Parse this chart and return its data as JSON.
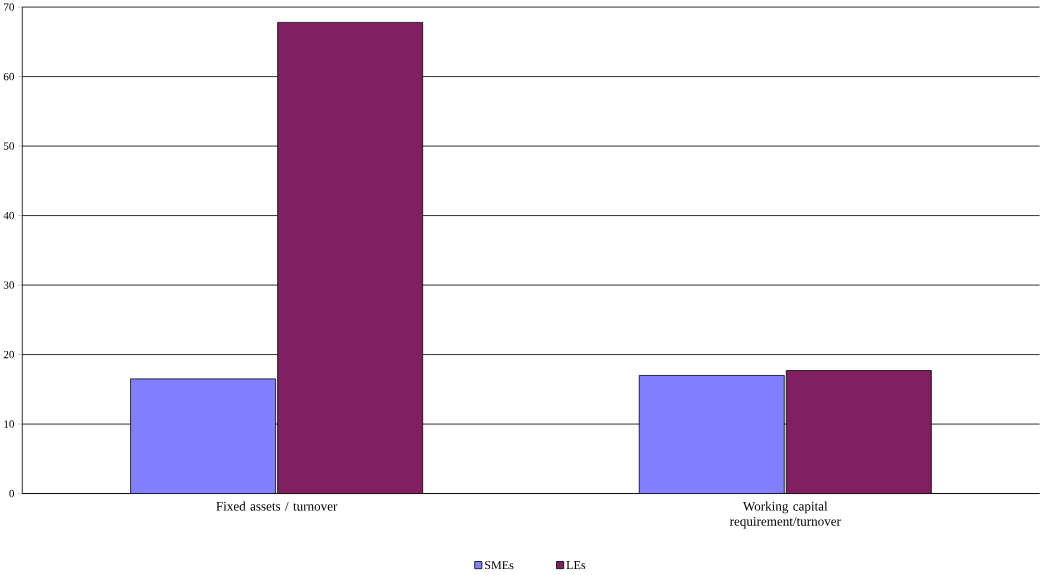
{
  "chart_data": {
    "type": "bar",
    "categories": [
      "Fixed assets / turnover",
      "Working capital requirement/turnover"
    ],
    "series": [
      {
        "name": "SMEs",
        "color": "#8080ff",
        "values": [
          16.5,
          17.0
        ]
      },
      {
        "name": "LEs",
        "color": "#802060",
        "values": [
          67.8,
          17.7
        ]
      }
    ],
    "ylim": [
      0,
      70
    ],
    "yticks": [
      0,
      10,
      20,
      30,
      40,
      50,
      60,
      70
    ],
    "grid": "y",
    "legend": "bottom"
  }
}
